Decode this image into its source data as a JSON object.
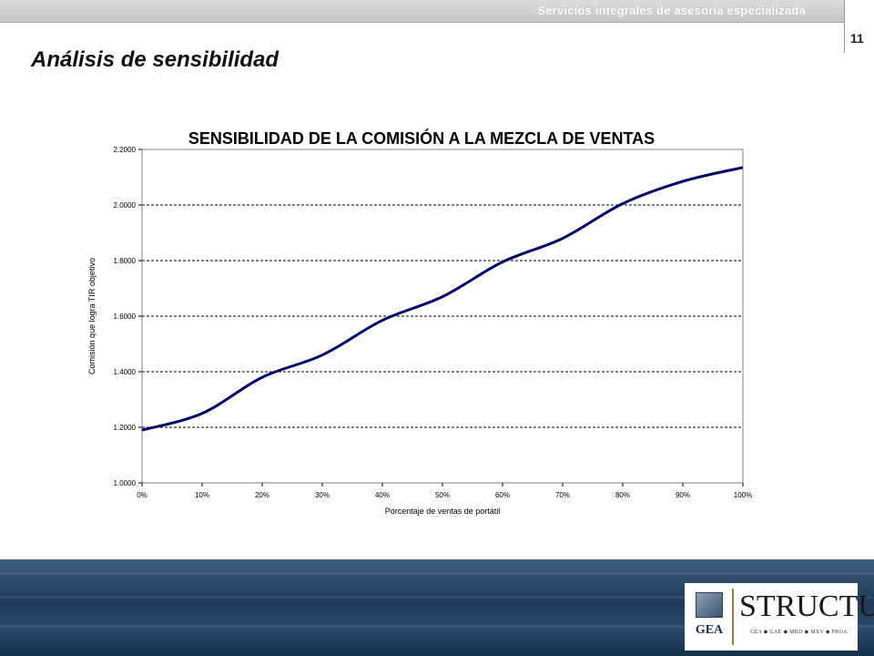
{
  "header": {
    "tagline": "Servicios integrales de asesoría especializada",
    "page_number": "11"
  },
  "slide": {
    "title": "Análisis de sensibilidad"
  },
  "footer": {
    "logo_gea": "GEA",
    "logo_structura": "STRUCTURA",
    "logo_sub": "GEA ◆ GAE ◆ MRD ◆ MXV ◆ PROA"
  },
  "colors": {
    "line": "#000066",
    "grid": "#000000",
    "footer_dark": "#1e3a57"
  },
  "chart_data": {
    "type": "line",
    "title": "SENSIBILIDAD DE LA COMISIÓN A LA MEZCLA DE VENTAS",
    "xlabel": "Porcentaje de ventas de portátil",
    "ylabel": "Comisión que logra TIR objetivo",
    "x": [
      0,
      10,
      20,
      30,
      40,
      50,
      60,
      70,
      80,
      90,
      100
    ],
    "x_tick_labels": [
      "0%",
      "10%",
      "20%",
      "30%",
      "40%",
      "50%",
      "60%",
      "70%",
      "80%",
      "90%",
      "100%"
    ],
    "y_tick_labels": [
      "1.0000",
      "1.2000",
      "1.4000",
      "1.6000",
      "1.8000",
      "2.0000",
      "2.2000"
    ],
    "ylim": [
      1.0,
      2.2
    ],
    "xlim": [
      0,
      100
    ],
    "grid": "horizontal dashed",
    "series": [
      {
        "values": [
          1.19,
          1.25,
          1.38,
          1.46,
          1.585,
          1.67,
          1.795,
          1.88,
          2.005,
          2.085,
          2.135
        ]
      }
    ]
  }
}
